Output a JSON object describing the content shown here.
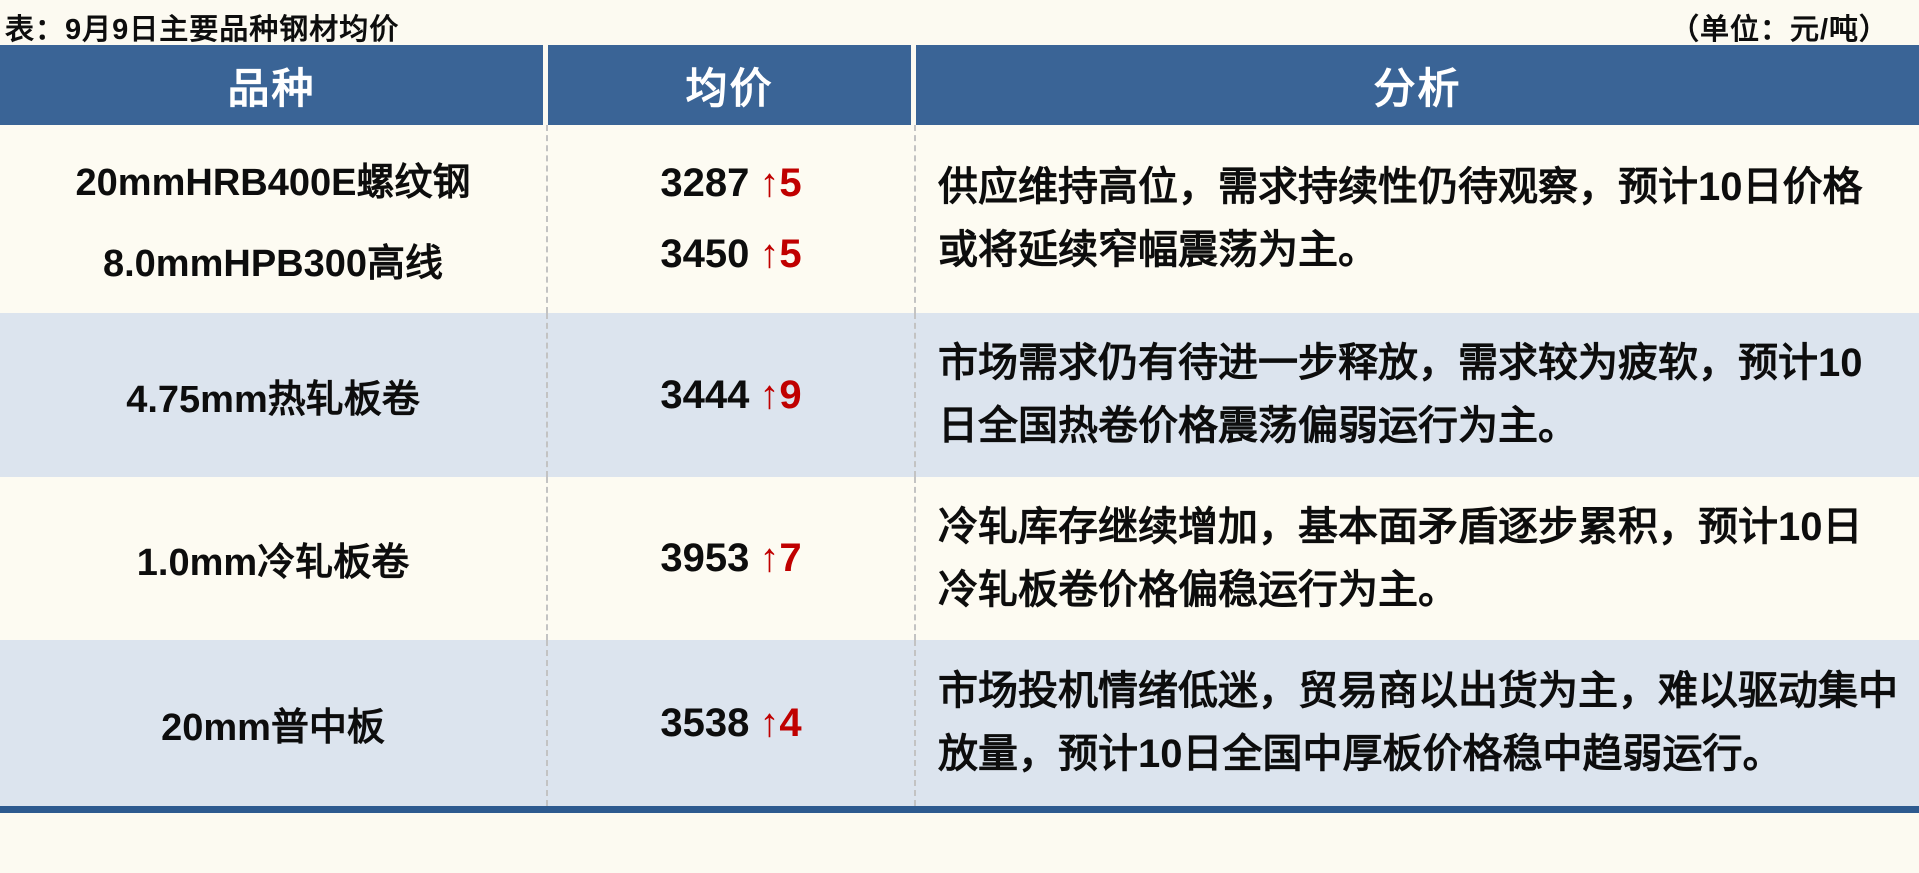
{
  "header": {
    "title": "表：9月9日主要品种钢材均价",
    "unit": "（单位：元/吨）"
  },
  "table": {
    "columns": [
      "品种",
      "均价",
      "分析"
    ],
    "rows": [
      {
        "varieties": [
          {
            "name": "20mmHRB400E螺纹钢",
            "price": "3287",
            "change": "↑5"
          },
          {
            "name": "8.0mmHPB300高线",
            "price": "3450",
            "change": "↑5"
          }
        ],
        "analysis_lines": [
          "供应维持高位，需求持续性仍待观察，预计10日价格",
          "或将延续窄幅震荡为主。"
        ]
      },
      {
        "varieties": [
          {
            "name": "4.75mm热轧板卷",
            "price": "3444",
            "change": "↑9"
          }
        ],
        "analysis_lines": [
          "市场需求仍有待进一步释放，需求较为疲软，预计10",
          "日全国热卷价格震荡偏弱运行为主。"
        ]
      },
      {
        "varieties": [
          {
            "name": "1.0mm冷轧板卷",
            "price": "3953",
            "change": "↑7"
          }
        ],
        "analysis_lines": [
          "冷轧库存继续增加，基本面矛盾逐步累积，预计10日",
          "冷轧板卷价格偏稳运行为主。"
        ]
      },
      {
        "varieties": [
          {
            "name": "20mm普中板",
            "price": "3538",
            "change": "↑4"
          }
        ],
        "analysis_lines": [
          "市场投机情绪低迷，贸易商以出货为主，难以驱动集中",
          "放量，预计10日全国中厚板价格稳中趋弱运行。"
        ]
      }
    ]
  },
  "colors": {
    "header_bg": "#3a6496",
    "row_cream_bg": "#fdfbf2",
    "row_blue_bg": "#dce4ee",
    "change_up_red": "#c00000",
    "bottom_bar": "#2d5a8f",
    "header_text": "#ffffff",
    "body_text": "#0d0d0d"
  }
}
